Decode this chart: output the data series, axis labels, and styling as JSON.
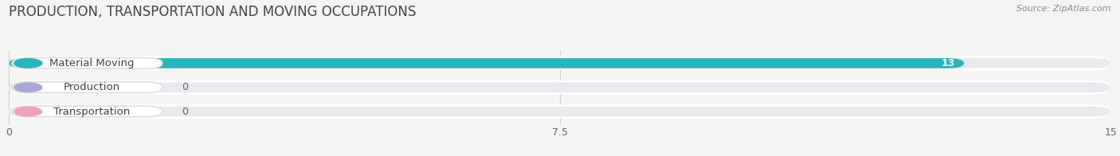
{
  "title": "PRODUCTION, TRANSPORTATION AND MOVING OCCUPATIONS",
  "source": "Source: ZipAtlas.com",
  "categories": [
    "Material Moving",
    "Production",
    "Transportation"
  ],
  "values": [
    13,
    0,
    0
  ],
  "bar_colors": [
    "#2ab5be",
    "#a8a8d8",
    "#f0a0b8"
  ],
  "xlim": [
    0,
    15
  ],
  "xticks": [
    0,
    7.5,
    15
  ],
  "bar_height": 0.58,
  "background_color": "#f4f4f4",
  "bar_background": "#e8e8ef",
  "row_background": "#ffffff",
  "title_fontsize": 12,
  "label_fontsize": 9.5,
  "tick_fontsize": 9,
  "value_fontsize": 9
}
